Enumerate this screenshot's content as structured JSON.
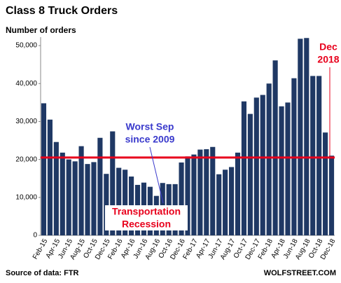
{
  "chart_data": {
    "type": "bar",
    "title": "Class 8 Truck Orders",
    "y_label": "Number of orders",
    "categories": [
      "Feb-15",
      null,
      "Apr-15",
      null,
      "Jun-15",
      null,
      "Aug-15",
      null,
      "Oct-15",
      null,
      "Dec-15",
      null,
      "Feb-16",
      null,
      "Apr-16",
      null,
      "Jun-16",
      null,
      "Aug-16",
      null,
      "Oct-16",
      null,
      "Dec-16",
      null,
      "Feb-17",
      null,
      "Apr-17",
      null,
      "Jun-17",
      null,
      "Aug-17",
      null,
      "Oct-17",
      null,
      "Dec-17",
      null,
      "Feb-18",
      null,
      "Apr-18",
      null,
      "Jun-18",
      null,
      "Aug-18",
      null,
      "Oct-18",
      null,
      "Dec-18"
    ],
    "values": [
      34800,
      30500,
      24600,
      21800,
      20000,
      19500,
      23500,
      18800,
      19300,
      25700,
      16200,
      27400,
      17800,
      17300,
      15500,
      13300,
      13900,
      12800,
      10400,
      13800,
      13500,
      13500,
      19200,
      20800,
      21300,
      22600,
      22700,
      23300,
      16100,
      17300,
      18000,
      21800,
      35300,
      32000,
      36300,
      37000,
      40000,
      46100,
      34000,
      35000,
      41400,
      51800,
      52000,
      42000,
      42000,
      27100,
      21000
    ],
    "color": "#1f3864",
    "ylim": [
      0,
      55000
    ],
    "yticks": [
      0,
      {
        "value": 10000,
        "label": "10,000"
      },
      {
        "value": 20000,
        "label": "20,000"
      },
      {
        "value": 30000,
        "label": "30,000"
      },
      {
        "value": 40000,
        "label": "40,000"
      },
      {
        "value": 50000,
        "label": "50,000"
      }
    ],
    "grid": false,
    "reference_line": {
      "value": 20500,
      "color": "#e8001c"
    },
    "annotations": [
      {
        "lines": [
          "Worst Sep",
          "since 2009"
        ],
        "color": "#3a3acc"
      },
      {
        "lines": [
          "Transportation",
          "Recession"
        ],
        "color": "#e8001c"
      },
      {
        "lines": [
          "Dec",
          "2018"
        ],
        "color": "#e8001c"
      }
    ],
    "source": "Source of data: FTR",
    "credit": "WOLFSTREET.COM"
  }
}
